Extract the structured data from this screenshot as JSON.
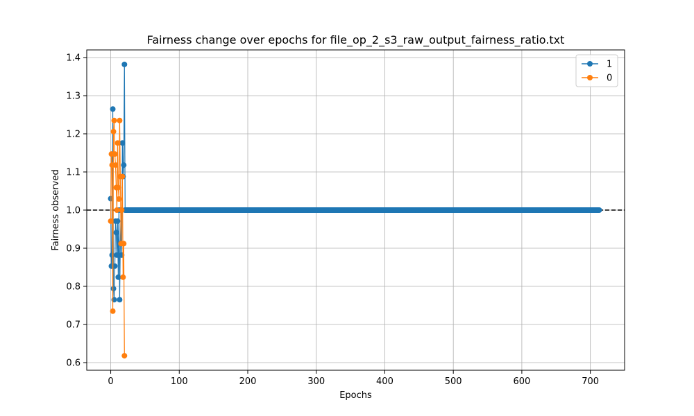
{
  "chart_data": {
    "type": "line",
    "title": "Fairness change over epochs for file_op_2_s3_raw_output_fairness_ratio.txt",
    "xlabel": "Epochs",
    "ylabel": "Fairness observed",
    "xlim": [
      -35,
      750
    ],
    "ylim": [
      0.58,
      1.42
    ],
    "x_ticks": [
      0,
      100,
      200,
      300,
      400,
      500,
      600,
      700
    ],
    "y_ticks": [
      0.6,
      0.7,
      0.8,
      0.9,
      1.0,
      1.1,
      1.2,
      1.3,
      1.4
    ],
    "x_tick_labels": [
      "0",
      "100",
      "200",
      "300",
      "400",
      "500",
      "600",
      "700"
    ],
    "y_tick_labels": [
      "0.6",
      "0.7",
      "0.8",
      "0.9",
      "1.0",
      "1.1",
      "1.2",
      "1.3",
      "1.4"
    ],
    "grid": true,
    "legend_position": "top-right",
    "reference_line": {
      "y": 1.0,
      "style": "dashed",
      "color": "#000000"
    },
    "series": [
      {
        "name": "1",
        "color": "#1f77b4",
        "marker": "circle",
        "x": [
          0,
          1,
          2,
          3,
          4,
          5,
          6,
          7,
          8,
          9,
          10,
          11,
          12,
          13,
          14,
          15,
          16,
          17,
          18,
          19,
          20
        ],
        "y": [
          1.03,
          0.853,
          0.882,
          1.265,
          0.794,
          0.765,
          0.853,
          0.971,
          0.941,
          0.882,
          0.971,
          0.824,
          1.0,
          0.765,
          0.912,
          1.0,
          0.882,
          1.176,
          1.088,
          1.118,
          1.382
        ],
        "tail": {
          "x_start": 21,
          "x_end": 713,
          "y": 1.0
        }
      },
      {
        "name": "0",
        "color": "#ff7f0e",
        "marker": "circle",
        "x": [
          0,
          1,
          2,
          3,
          4,
          5,
          6,
          7,
          8,
          9,
          10,
          11,
          12,
          13,
          14,
          15,
          16,
          17,
          18,
          19,
          20
        ],
        "y": [
          0.971,
          1.147,
          1.118,
          0.735,
          1.206,
          1.235,
          1.147,
          1.118,
          1.059,
          1.0,
          1.176,
          1.059,
          1.029,
          1.235,
          1.088,
          0.912,
          1.0,
          1.088,
          0.824,
          0.912,
          0.618
        ]
      }
    ]
  }
}
